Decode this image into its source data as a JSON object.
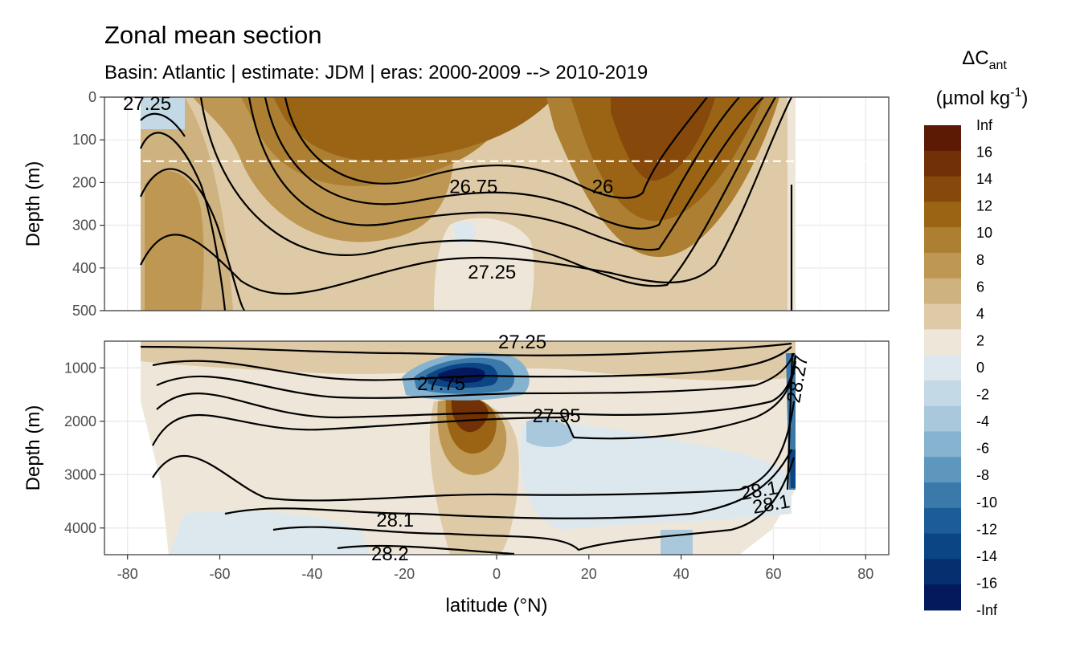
{
  "chart_data": {
    "type": "filled contour (zonal mean section)",
    "title": "Zonal mean section",
    "subtitle": "Basin: Atlantic | estimate: JDM  | eras: 2000-2009 --> 2010-2019",
    "xlabel": "latitude (°N)",
    "ylabel": "Depth (m)",
    "xlim": [
      -85,
      85
    ],
    "x_ticks": [
      -80,
      -60,
      -40,
      -20,
      0,
      20,
      40,
      60,
      80
    ],
    "x_tick_labels": [
      "-80",
      "-60",
      "-40",
      "-20",
      "0",
      "20",
      "40",
      "60",
      "80"
    ],
    "panels": [
      {
        "name": "upper",
        "ylim": [
          0,
          500
        ],
        "y_ticks": [
          0,
          100,
          200,
          300,
          400,
          500
        ],
        "y_tick_labels": [
          "0",
          "100",
          "200",
          "300",
          "400",
          "500"
        ],
        "reference_depth": 150
      },
      {
        "name": "lower",
        "ylim": [
          500,
          4500
        ],
        "y_ticks": [
          1000,
          2000,
          3000,
          4000
        ],
        "y_tick_labels": [
          "1000",
          "2000",
          "3000",
          "4000"
        ]
      }
    ],
    "legend": {
      "title_main": "ΔC",
      "title_sub": "ant",
      "units_open": "(µmol kg",
      "units_sup": "-1",
      "units_close": ")",
      "placement": "right",
      "labels": [
        "Inf",
        "16",
        "14",
        "12",
        "10",
        "8",
        "6",
        "4",
        "2",
        "0",
        "-2",
        "-4",
        "-6",
        "-8",
        "-10",
        "-12",
        "-14",
        "-16",
        "-Inf"
      ],
      "colors": [
        "#5c1a04",
        "#713006",
        "#86490b",
        "#9a6414",
        "#ad7f32",
        "#be9853",
        "#ceb27f",
        "#dfcaa7",
        "#eee7d9",
        "#dde8ee",
        "#c4d9e6",
        "#a9c8dc",
        "#86b3cf",
        "#5e97bd",
        "#3b79aa",
        "#1c5d97",
        "#0b4584",
        "#052f6f",
        "#03195c"
      ]
    },
    "series": [
      {
        "name": "26",
        "label_lat": 23,
        "label_depth": 210
      },
      {
        "name": "26.75",
        "label_lat": -5,
        "label_depth": 210
      },
      {
        "name": "27.25",
        "label_lat": -1,
        "label_depth": 410
      },
      {
        "name": "27.75",
        "label_lat": -12,
        "label_depth": 1300
      },
      {
        "name": "27.95",
        "label_lat": 13,
        "label_depth": 1900
      },
      {
        "name": "28.1",
        "label_lat": -22,
        "label_depth": 3850
      }
    ],
    "annotations": [
      "27.25",
      "27.25",
      "28.2",
      "28.1",
      "28.1",
      "28.27"
    ]
  }
}
